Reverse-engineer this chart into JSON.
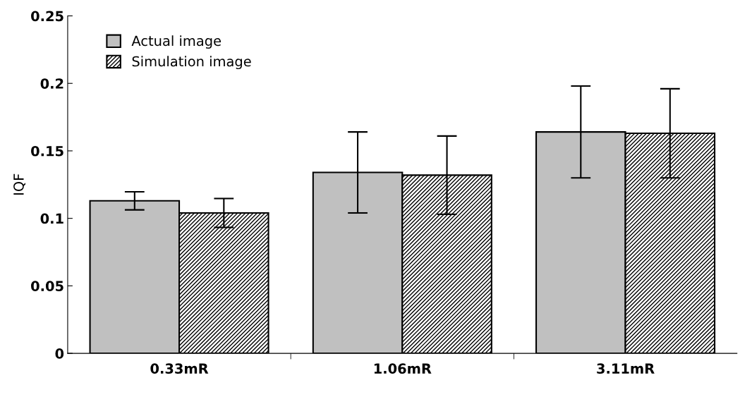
{
  "chart_data": {
    "type": "bar",
    "ylabel": "IQF",
    "categories": [
      "0.33mR",
      "1.06mR",
      "3.11mR"
    ],
    "series": [
      {
        "name": "Actual image",
        "color": "#c0c0c0",
        "values": [
          0.113,
          0.134,
          0.164
        ],
        "errors": [
          0.0067,
          0.03,
          0.034
        ]
      },
      {
        "name": "Simulation image",
        "color": "#000000",
        "values": [
          0.104,
          0.132,
          0.163
        ],
        "errors": [
          0.0107,
          0.029,
          0.033
        ]
      }
    ],
    "ylim": [
      0,
      0.25
    ],
    "yticks": [
      0,
      0.05,
      0.1,
      0.15,
      0.2,
      0.25
    ],
    "grid": false,
    "legend": "top left"
  }
}
